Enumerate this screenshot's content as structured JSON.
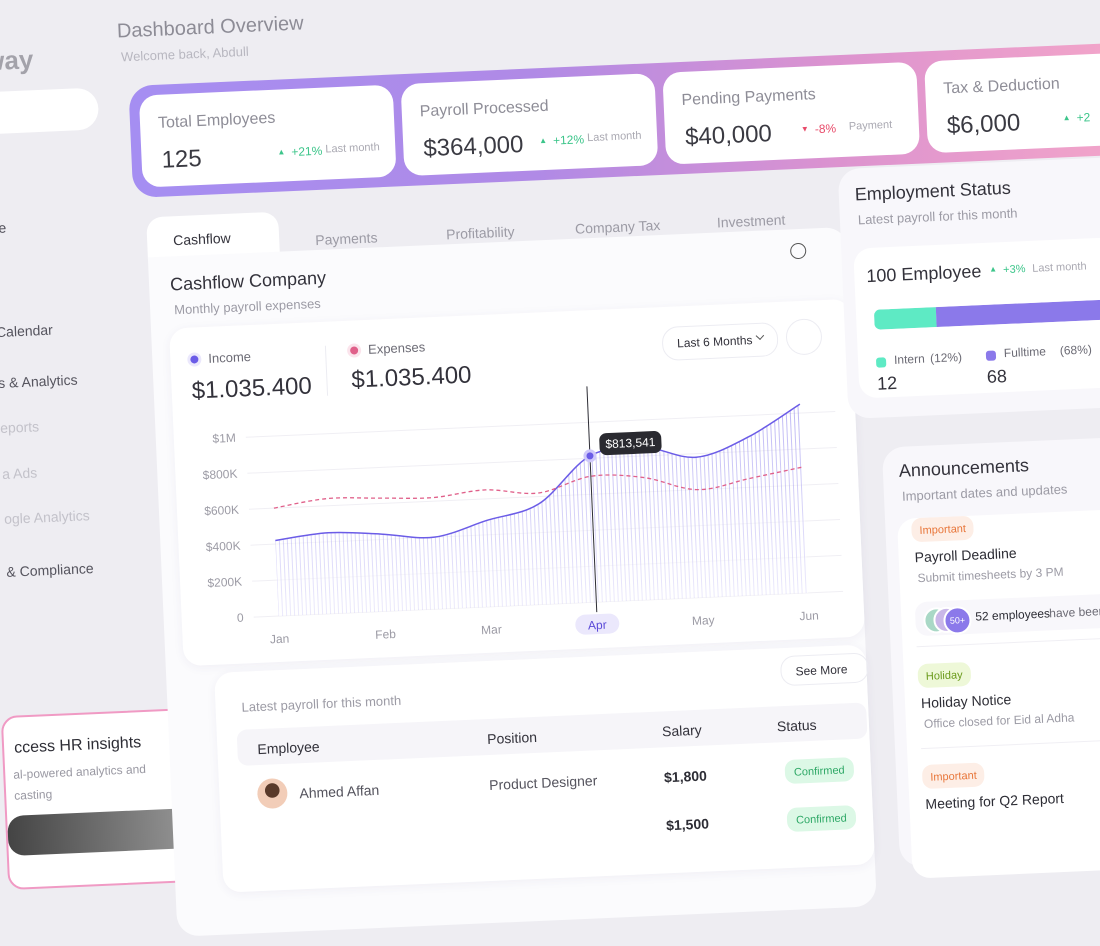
{
  "sidebar": {
    "logo": "way",
    "items": [
      {
        "label": "ce",
        "muted": false
      },
      {
        "label": "Calendar",
        "muted": false
      },
      {
        "label": "s & Analytics",
        "muted": false
      },
      {
        "label": "eports",
        "muted": true
      },
      {
        "label": "a Ads",
        "muted": true
      },
      {
        "label": "ogle Analytics",
        "muted": true
      },
      {
        "label": "& Compliance",
        "muted": false
      }
    ]
  },
  "header": {
    "title": "Dashboard Overview",
    "subtitle": "Welcome back, Abdull"
  },
  "stats": [
    {
      "label": "Total Employees",
      "value": "125",
      "change": "+21%",
      "note": "Last month",
      "trend": "up"
    },
    {
      "label": "Payroll Processed",
      "value": "$364,000",
      "change": "+12%",
      "note": "Last month",
      "trend": "up"
    },
    {
      "label": "Pending Payments",
      "value": "$40,000",
      "change": "-8%",
      "note": "Payment",
      "trend": "down"
    },
    {
      "label": "Tax & Deduction",
      "value": "$6,000",
      "change": "+2",
      "trend": "up"
    }
  ],
  "tabs": {
    "items": [
      "Cashflow",
      "Payments",
      "Profitability",
      "Company Tax",
      "Investment"
    ],
    "active": 0
  },
  "cashflow": {
    "title": "Cashflow Company",
    "subtitle": "Monthly payroll expenses",
    "range": "Last 6 Months",
    "totals": [
      "$1.035.400",
      "$1.035.400"
    ]
  },
  "chart_data": {
    "type": "area",
    "categories": [
      "Jan",
      null,
      "Feb",
      null,
      "Mar",
      null,
      "Apr",
      null,
      "May",
      null,
      "Jun"
    ],
    "series": [
      {
        "name": "Income",
        "color": "#6b5ce7",
        "values": [
          420000,
          450000,
          430000,
          400000,
          480000,
          560000,
          813541,
          850000,
          780000,
          880000,
          1050000
        ]
      },
      {
        "name": "Expenses",
        "color": "#e0608a",
        "values": [
          600000,
          640000,
          630000,
          620000,
          650000,
          620000,
          700000,
          680000,
          600000,
          650000,
          700000
        ]
      }
    ],
    "ylim": [
      0,
      1200000
    ],
    "yticks": [
      0,
      {
        "value": 200000,
        "label": "$200K"
      },
      {
        "value": 400000,
        "label": "$400K"
      },
      {
        "value": 600000,
        "label": "$600K"
      },
      {
        "value": 800000,
        "label": "$800K"
      },
      {
        "value": 1000000,
        "label": "$1M"
      }
    ],
    "grid": true,
    "tooltip": {
      "index": 6,
      "label": "$813,541"
    }
  },
  "payroll_table": {
    "caption": "Latest payroll for this month",
    "see_more": "See More",
    "columns": [
      "Employee",
      "Position",
      "Salary",
      "Status"
    ],
    "rows": [
      {
        "employee": "Ahmed Affan",
        "position": "Product Designer",
        "salary": "$1,800",
        "status": "Confirmed"
      },
      {
        "salary": "$1,500",
        "status": "Confirmed"
      }
    ]
  },
  "employment": {
    "title": "Employment Status",
    "subtitle": "Latest payroll for this month",
    "total": "100 Employee",
    "change": "+3%",
    "note": "Last month",
    "segments": [
      {
        "label": "Intern",
        "share": 12,
        "share_label": "(12%)",
        "count": 12,
        "color": "#5eeac4"
      },
      {
        "label": "Fulltime",
        "share": 68,
        "share_label": "(68%)",
        "count": 68,
        "color": "#8b79ea"
      }
    ]
  },
  "announcements": {
    "title": "Announcements",
    "subtitle": "Important dates and updates",
    "items": [
      {
        "tag": "Important",
        "tone": "orange",
        "title": "Payroll Deadline",
        "text": "Submit timesheets by 3 PM"
      },
      {
        "tag": "Holiday",
        "tone": "green",
        "title": "Holiday Notice",
        "text": "Office closed for Eid al Adha"
      },
      {
        "tag": "Important",
        "tone": "orange",
        "title": "Meeting for Q2 Report"
      }
    ],
    "participants": {
      "badge": "50+",
      "count_text": "52 employees",
      "text": "have been p"
    }
  },
  "promo": {
    "title": "ccess HR insights",
    "lines": [
      "al-powered analytics and",
      "casting"
    ]
  }
}
